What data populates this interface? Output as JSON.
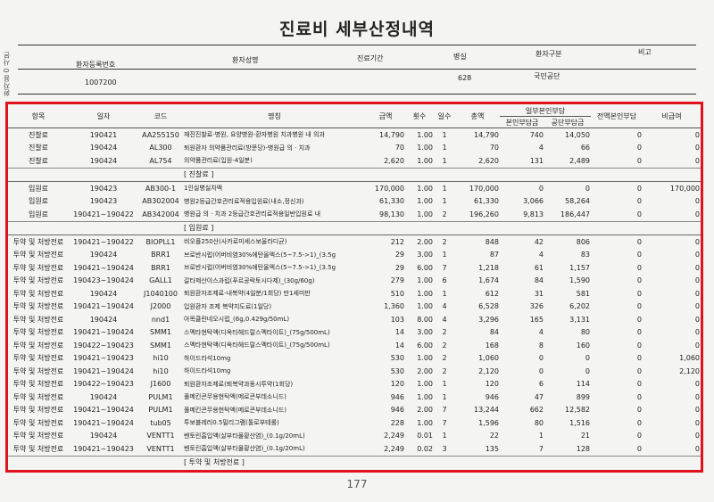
{
  "title": "진료비 세부산정내역",
  "side_label": "환자용 0 사본",
  "info": {
    "headers": [
      "환자등록번호",
      "환자성명",
      "진료기간",
      "병실",
      "환자구분",
      "비고"
    ],
    "patient_no": "1007200",
    "ward": "628",
    "patient_type": "국민공단"
  },
  "columns": {
    "category": "항목",
    "date": "일자",
    "code": "코드",
    "name": "명칭",
    "price": "금액",
    "count": "횟수",
    "days": "일수",
    "total": "총액",
    "self_group": "일부본인부담",
    "self": "본인부담금",
    "insurer": "공단부담금",
    "full_self": "전액본인부담",
    "non_covered": "비급여"
  },
  "rows": [
    {
      "cat": "진찰료",
      "date": "190421",
      "code": "AA255150",
      "name": "재진진찰료-병원, 요양병원-환자병원 치과병원 내 의과",
      "price": "14,790",
      "cnt": "1.00",
      "days": "1",
      "total": "14,790",
      "self": "740",
      "ins": "14,050",
      "full": "0",
      "non": "0"
    },
    {
      "cat": "진찰료",
      "date": "190424",
      "code": "AL300",
      "name": "퇴원환자 의약품관리료(방문당)-병원급 의 · 치과",
      "price": "70",
      "cnt": "1.00",
      "days": "1",
      "total": "70",
      "self": "4",
      "ins": "66",
      "full": "0",
      "non": "0"
    },
    {
      "cat": "진찰료",
      "date": "190424",
      "code": "AL754",
      "name": "의약품관리료(입원-4일분)",
      "price": "2,620",
      "cnt": "1.00",
      "days": "1",
      "total": "2,620",
      "self": "131",
      "ins": "2,489",
      "full": "0",
      "non": "0"
    },
    {
      "sec": "[ 진찰료 ]"
    },
    {
      "cat": "입원료",
      "date": "190423",
      "code": "AB300-1",
      "name": "1인실병실차액",
      "price": "170,000",
      "cnt": "1.00",
      "days": "1",
      "total": "170,000",
      "self": "0",
      "ins": "0",
      "full": "0",
      "non": "170,000"
    },
    {
      "cat": "입원료",
      "date": "190423",
      "code": "AB302004",
      "name": "병원2등급간호관리료적용입원료(내소,정신과)",
      "price": "61,330",
      "cnt": "1.00",
      "days": "1",
      "total": "61,330",
      "self": "3,066",
      "ins": "58,264",
      "full": "0",
      "non": "0"
    },
    {
      "cat": "입원료",
      "date": "190421~190422",
      "code": "AB342004",
      "name": "병원급 의 · 치과 2등급간호관리료적용일반입원료 내",
      "price": "98,130",
      "cnt": "1.00",
      "days": "2",
      "total": "196,260",
      "self": "9,813",
      "ins": "186,447",
      "full": "0",
      "non": "0"
    },
    {
      "sec": "[ 입원료 ]"
    },
    {
      "cat": "투약 및 처방전료",
      "date": "190421~190422",
      "code": "BIOPLL1",
      "name": "비오플250산(사카로미세스보울라디균)",
      "price": "212",
      "cnt": "2.00",
      "days": "2",
      "total": "848",
      "self": "42",
      "ins": "806",
      "full": "0",
      "non": "0"
    },
    {
      "cat": "투약 및 처방전료",
      "date": "190424",
      "code": "BRR1",
      "name": "브로반시럽(어버비염30%에탄올엑스(5~7.5->1)_(3.5g",
      "price": "29",
      "cnt": "3.00",
      "days": "1",
      "total": "87",
      "self": "4",
      "ins": "83",
      "full": "0",
      "non": "0"
    },
    {
      "cat": "투약 및 처방전료",
      "date": "190421~190424",
      "code": "BRR1",
      "name": "브로반시럽(어버비염30%에탄올엑스(5~7.5->1)_(3.5g",
      "price": "29",
      "cnt": "6.00",
      "days": "7",
      "total": "1,218",
      "self": "61",
      "ins": "1,157",
      "full": "0",
      "non": "0"
    },
    {
      "cat": "투약 및 처방전료",
      "date": "190423~190424",
      "code": "GALL1",
      "name": "갈타제산이스과립(푸르공락토시다제)_(30g/60g)",
      "price": "279",
      "cnt": "1.00",
      "days": "6",
      "total": "1,674",
      "self": "84",
      "ins": "1,590",
      "full": "0",
      "non": "0"
    },
    {
      "cat": "투약 및 처방전료",
      "date": "190424",
      "code": "J1040100",
      "name": "퇴원환자조제료-내복약(4일분/1회당) 만1세미만",
      "price": "510",
      "cnt": "1.00",
      "days": "1",
      "total": "612",
      "self": "31",
      "ins": "581",
      "full": "0",
      "non": "0"
    },
    {
      "cat": "투약 및 처방전료",
      "date": "190421~190424",
      "code": "J2000",
      "name": "입원환자 조제 복약지도료(1일당)",
      "price": "1,360",
      "cnt": "1.00",
      "days": "4",
      "total": "6,528",
      "self": "326",
      "ins": "6,202",
      "full": "0",
      "non": "0"
    },
    {
      "cat": "투약 및 처방전료",
      "date": "190424",
      "code": "nnd1",
      "name": "아목클란네오시럽_(6g,0.429g/50mL)",
      "price": "103",
      "cnt": "8.00",
      "days": "4",
      "total": "3,296",
      "self": "165",
      "ins": "3,131",
      "full": "0",
      "non": "0"
    },
    {
      "cat": "투약 및 처방전료",
      "date": "190421~190424",
      "code": "SMM1",
      "name": "스멕타현탁액(디옥타헤드랄스멕타이트)_(75g/500mL)",
      "price": "14",
      "cnt": "3.00",
      "days": "2",
      "total": "84",
      "self": "4",
      "ins": "80",
      "full": "0",
      "non": "0"
    },
    {
      "cat": "투약 및 처방전료",
      "date": "190422~190423",
      "code": "SMM1",
      "name": "스멕타현탁액(디옥타헤드랄스멕타이트)_(75g/500mL)",
      "price": "14",
      "cnt": "6.00",
      "days": "2",
      "total": "168",
      "self": "8",
      "ins": "160",
      "full": "0",
      "non": "0"
    },
    {
      "cat": "투약 및 처방전료",
      "date": "190421~190423",
      "code": "hi10",
      "name": "하이드라석10mg",
      "price": "530",
      "cnt": "1.00",
      "days": "2",
      "total": "1,060",
      "self": "0",
      "ins": "0",
      "full": "0",
      "non": "1,060"
    },
    {
      "cat": "투약 및 처방전료",
      "date": "190421~190424",
      "code": "hi10",
      "name": "하이드라석10mg",
      "price": "530",
      "cnt": "2.00",
      "days": "2",
      "total": "2,120",
      "self": "0",
      "ins": "0",
      "full": "0",
      "non": "2,120"
    },
    {
      "cat": "투약 및 처방전료",
      "date": "190422~190423",
      "code": "J1600",
      "name": "퇴원환자조제료(퇴복약과동시투약(1회당)",
      "price": "120",
      "cnt": "1.00",
      "days": "1",
      "total": "120",
      "self": "6",
      "ins": "114",
      "full": "0",
      "non": "0"
    },
    {
      "cat": "투약 및 처방전료",
      "date": "190424",
      "code": "PULM1",
      "name": "풀메킨콘무용현탁액(메로콘부데소니드)",
      "price": "946",
      "cnt": "1.00",
      "days": "1",
      "total": "946",
      "self": "47",
      "ins": "899",
      "full": "0",
      "non": "0"
    },
    {
      "cat": "투약 및 처방전료",
      "date": "190421~190424",
      "code": "PULM1",
      "name": "풀메킨콘무용현탁액(메로콘부데소니드)",
      "price": "946",
      "cnt": "2.00",
      "days": "7",
      "total": "13,244",
      "self": "662",
      "ins": "12,582",
      "full": "0",
      "non": "0"
    },
    {
      "cat": "투약 및 처방전료",
      "date": "190421~190424",
      "code": "tub05",
      "name": "투보블레러0.5밀리그램(툴로부테롤)",
      "price": "228",
      "cnt": "1.00",
      "days": "7",
      "total": "1,596",
      "self": "80",
      "ins": "1,516",
      "full": "0",
      "non": "0"
    },
    {
      "cat": "투약 및 처방전료",
      "date": "190424",
      "code": "VENTT1",
      "name": "벤토린흡입액(살부타몰황산염)_(0.1g/20mL)",
      "price": "2,249",
      "cnt": "0.01",
      "days": "1",
      "total": "22",
      "self": "1",
      "ins": "21",
      "full": "0",
      "non": "0"
    },
    {
      "cat": "투약 및 처방전료",
      "date": "190421~190423",
      "code": "VENTT1",
      "name": "벤토린흡입액(살부타몰황산염)_(0.1g/20mL)",
      "price": "2,249",
      "cnt": "0.02",
      "days": "3",
      "total": "135",
      "self": "7",
      "ins": "128",
      "full": "0",
      "non": "0"
    },
    {
      "sec": "[ 투약 및 처방전료 ]"
    }
  ],
  "page_no": "177"
}
